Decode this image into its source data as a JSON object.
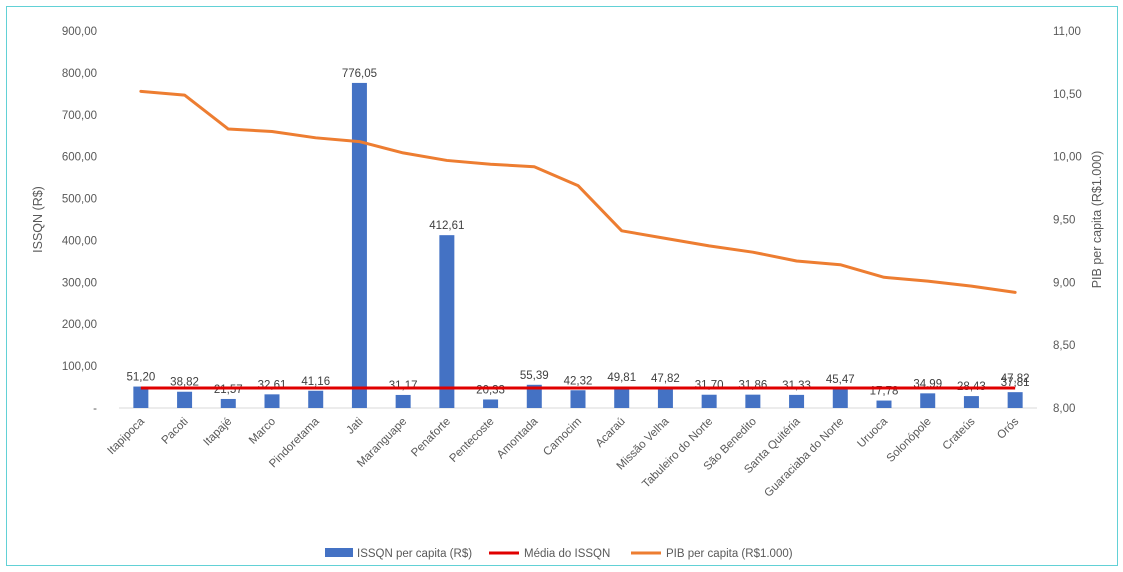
{
  "chart_data": {
    "type": "bar",
    "categories": [
      "Itapipoca",
      "Pacoti",
      "Itapajé",
      "Marco",
      "Pindoretama",
      "Jati",
      "Maranguape",
      "Penaforte",
      "Pentecoste",
      "Amontada",
      "Camocim",
      "Acaraú",
      "Missão Velha",
      "Tabuleiro do Norte",
      "São Benedito",
      "Santa Quitéria",
      "Guaraciaba do Norte",
      "Uruoca",
      "Solonópole",
      "Crateús",
      "Orós"
    ],
    "series": [
      {
        "name": "ISSQN per capita (R$)",
        "kind": "bar",
        "axis": "left",
        "color": "#4472c4",
        "values": [
          51.2,
          38.82,
          21.57,
          32.61,
          41.16,
          776.05,
          31.17,
          412.61,
          20.33,
          55.39,
          42.32,
          49.81,
          47.82,
          31.7,
          31.86,
          31.33,
          45.47,
          17.78,
          34.99,
          28.43,
          37.81
        ],
        "labels": [
          "51,20",
          "38,82",
          "21,57",
          "32,61",
          "41,16",
          "776,05",
          "31,17",
          "412,61",
          "20,33",
          "55,39",
          "42,32",
          "49,81",
          "47,82",
          "31,70",
          "31,86",
          "31,33",
          "45,47",
          "17,78",
          "34,99",
          "28,43",
          "37,81"
        ]
      },
      {
        "name": "Média do ISSQN",
        "kind": "line",
        "axis": "left",
        "color": "#e00000",
        "values": [
          47.82,
          47.82,
          47.82,
          47.82,
          47.82,
          47.82,
          47.82,
          47.82,
          47.82,
          47.82,
          47.82,
          47.82,
          47.82,
          47.82,
          47.82,
          47.82,
          47.82,
          47.82,
          47.82,
          47.82,
          47.82
        ],
        "end_label": "47,82"
      },
      {
        "name": "PIB per capita (R$1.000)",
        "kind": "line",
        "axis": "right",
        "color": "#ed7d31",
        "values": [
          10.52,
          10.49,
          10.22,
          10.2,
          10.15,
          10.12,
          10.03,
          9.97,
          9.94,
          9.92,
          9.77,
          9.41,
          9.35,
          9.29,
          9.24,
          9.17,
          9.14,
          9.04,
          9.01,
          8.97,
          8.92
        ]
      }
    ],
    "ylabel": "ISSQN (R$)",
    "y2label": "PIB per capita (R$1.000)",
    "ylim": [
      0,
      900
    ],
    "y2lim": [
      8.0,
      11.0
    ],
    "yticks": [
      "-",
      "100,00",
      "200,00",
      "300,00",
      "400,00",
      "500,00",
      "600,00",
      "700,00",
      "800,00",
      "900,00"
    ],
    "y2ticks": [
      "8,00",
      "8,50",
      "9,00",
      "9,50",
      "10,00",
      "10,50",
      "11,00"
    ],
    "grid": false,
    "legend_position": "bottom"
  }
}
